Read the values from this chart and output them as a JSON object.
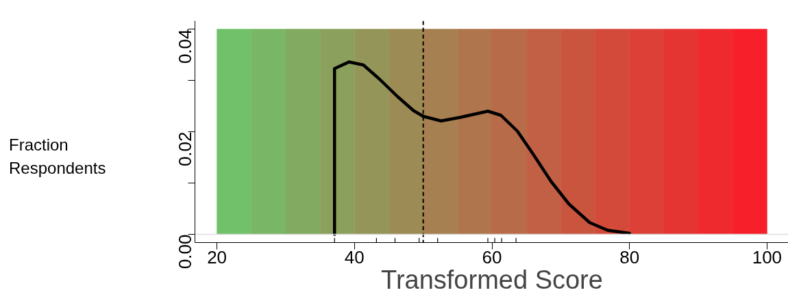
{
  "chart_data": {
    "type": "line",
    "xlabel": "Transformed Score",
    "ylabel": "Fraction Respondents",
    "xlim": [
      16.8,
      103.2
    ],
    "ylim": [
      -0.0016,
      0.0416
    ],
    "xticks": [
      20,
      40,
      60,
      80,
      100
    ],
    "yticks": [
      {
        "value": 0,
        "label": "0.00"
      },
      {
        "value": 0.01,
        "label": null
      },
      {
        "value": 0.02,
        "label": "0.02"
      },
      {
        "value": 0.03,
        "label": null
      },
      {
        "value": 0.04,
        "label": "0.04"
      }
    ],
    "grid": false,
    "line_style": "solid",
    "series": [
      {
        "color": "#000000",
        "x": [
          37.1,
          37.1,
          39.2,
          41.3,
          43.6,
          46.3,
          48.6,
          50.0,
          52.6,
          55.4,
          59.4,
          61.3,
          63.7,
          66.0,
          68.6,
          71.2,
          74.2,
          76.8,
          80.0
        ],
        "values": [
          0.0,
          0.0323,
          0.0336,
          0.033,
          0.0303,
          0.0268,
          0.0241,
          0.023,
          0.0221,
          0.0228,
          0.024,
          0.0232,
          0.0201,
          0.0156,
          0.0103,
          0.0059,
          0.0023,
          0.0008,
          0.0002
        ]
      },
      {
        "type": "bar",
        "color": "#000000",
        "x": [
          37.1,
          43.2,
          45.9,
          49.4,
          52.1,
          59.4,
          60.4,
          61.4,
          63.5
        ],
        "base": [
          -0.0016,
          -0.0016,
          -0.0016,
          -0.0016,
          -0.0016,
          -0.0016,
          -0.0016,
          -0.0016,
          -0.0016
        ],
        "values": [
          0.0009,
          0.0009,
          0.0009,
          0.0009,
          0.0009,
          0.0009,
          0.0009,
          0.0009,
          0.0009
        ]
      }
    ],
    "ref_lines": [
      {
        "axis": "x",
        "value": 50,
        "color": "#000000",
        "line_style": "dashed"
      },
      {
        "axis": "y",
        "value": 0,
        "color": "#dcdcdc",
        "line_style": "solid"
      }
    ],
    "bands": [
      {
        "axis": "x",
        "from": 20,
        "to": 25,
        "color": "#70c16a"
      },
      {
        "axis": "x",
        "from": 25,
        "to": 30,
        "color": "#79b666"
      },
      {
        "axis": "x",
        "from": 30,
        "to": 35,
        "color": "#82ab61"
      },
      {
        "axis": "x",
        "from": 35,
        "to": 40,
        "color": "#8ba05d"
      },
      {
        "axis": "x",
        "from": 40,
        "to": 45,
        "color": "#949659"
      },
      {
        "axis": "x",
        "from": 45,
        "to": 50,
        "color": "#9d8b55"
      },
      {
        "axis": "x",
        "from": 50,
        "to": 55,
        "color": "#a68050"
      },
      {
        "axis": "x",
        "from": 55,
        "to": 60,
        "color": "#af754c"
      },
      {
        "axis": "x",
        "from": 60,
        "to": 65,
        "color": "#b86b48"
      },
      {
        "axis": "x",
        "from": 65,
        "to": 70,
        "color": "#c16044"
      },
      {
        "axis": "x",
        "from": 70,
        "to": 75,
        "color": "#ca553f"
      },
      {
        "axis": "x",
        "from": 75,
        "to": 80,
        "color": "#d34a3b"
      },
      {
        "axis": "x",
        "from": 80,
        "to": 85,
        "color": "#dc4037"
      },
      {
        "axis": "x",
        "from": 85,
        "to": 90,
        "color": "#e53533"
      },
      {
        "axis": "x",
        "from": 90,
        "to": 95,
        "color": "#ef2a2e"
      },
      {
        "axis": "x",
        "from": 95,
        "to": 100,
        "color": "#f71f2a"
      }
    ]
  }
}
